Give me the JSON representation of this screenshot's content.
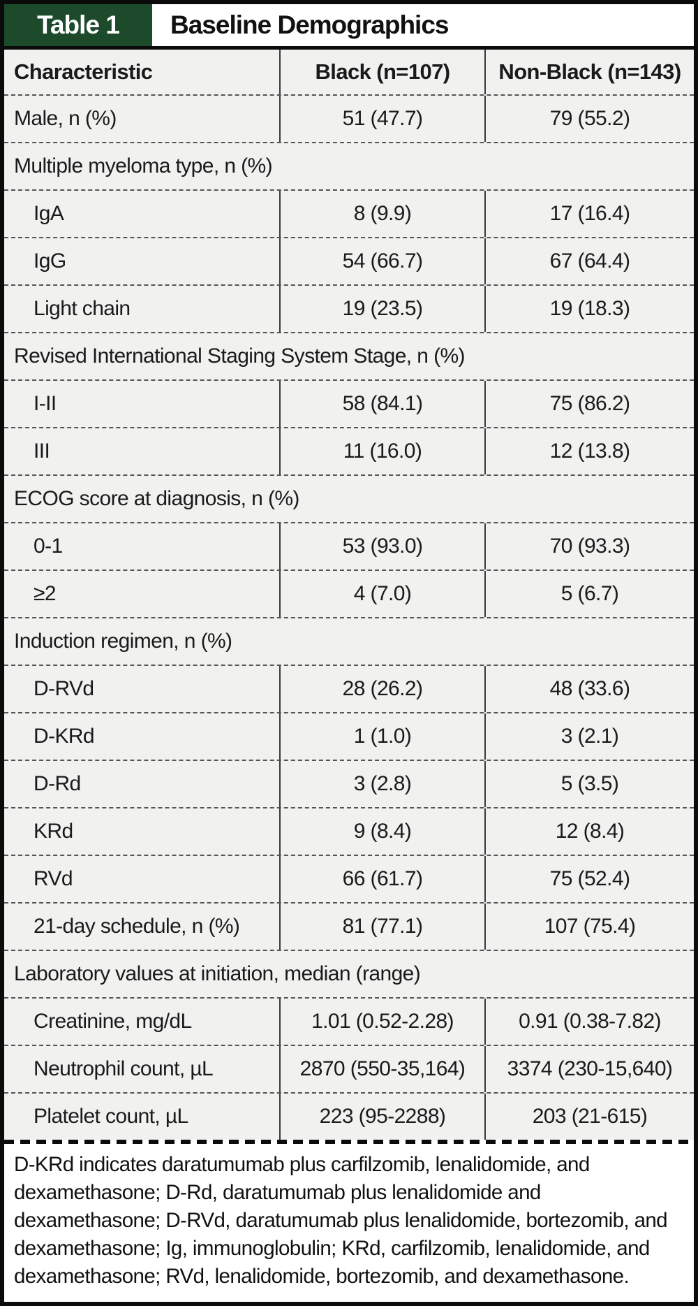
{
  "header": {
    "table_tag": "Table 1",
    "title": "Baseline Demographics"
  },
  "table": {
    "columns": [
      "Characteristic",
      "Black (n=107)",
      "Non-Black (n=143)"
    ],
    "rows": [
      {
        "type": "data",
        "indent": false,
        "label": "Male, n (%)",
        "values": [
          "51 (47.7)",
          "79 (55.2)"
        ]
      },
      {
        "type": "section",
        "label": "Multiple myeloma type, n (%)"
      },
      {
        "type": "data",
        "indent": true,
        "label": "IgA",
        "values": [
          "8 (9.9)",
          "17 (16.4)"
        ]
      },
      {
        "type": "data",
        "indent": true,
        "label": "IgG",
        "values": [
          "54 (66.7)",
          "67 (64.4)"
        ]
      },
      {
        "type": "data",
        "indent": true,
        "label": "Light chain",
        "values": [
          "19 (23.5)",
          "19 (18.3)"
        ]
      },
      {
        "type": "section",
        "label": "Revised International Staging System Stage, n (%)"
      },
      {
        "type": "data",
        "indent": true,
        "label": "I-II",
        "values": [
          "58 (84.1)",
          "75 (86.2)"
        ]
      },
      {
        "type": "data",
        "indent": true,
        "label": "III",
        "values": [
          "11 (16.0)",
          "12 (13.8)"
        ]
      },
      {
        "type": "section",
        "label": "ECOG score at diagnosis, n (%)"
      },
      {
        "type": "data",
        "indent": true,
        "label": "0-1",
        "values": [
          "53 (93.0)",
          "70 (93.3)"
        ]
      },
      {
        "type": "data",
        "indent": true,
        "label": "≥2",
        "values": [
          "4 (7.0)",
          "5 (6.7)"
        ]
      },
      {
        "type": "section",
        "label": "Induction regimen, n (%)"
      },
      {
        "type": "data",
        "indent": true,
        "label": "D-RVd",
        "values": [
          "28 (26.2)",
          "48 (33.6)"
        ]
      },
      {
        "type": "data",
        "indent": true,
        "label": "D-KRd",
        "values": [
          "1 (1.0)",
          "3 (2.1)"
        ]
      },
      {
        "type": "data",
        "indent": true,
        "label": "D-Rd",
        "values": [
          "3 (2.8)",
          "5 (3.5)"
        ]
      },
      {
        "type": "data",
        "indent": true,
        "label": "KRd",
        "values": [
          "9 (8.4)",
          "12 (8.4)"
        ]
      },
      {
        "type": "data",
        "indent": true,
        "label": "RVd",
        "values": [
          "66 (61.7)",
          "75 (52.4)"
        ]
      },
      {
        "type": "data",
        "indent": true,
        "label": "21-day schedule, n (%)",
        "values": [
          "81 (77.1)",
          "107 (75.4)"
        ]
      },
      {
        "type": "section",
        "label": "Laboratory values at initiation, median (range)"
      },
      {
        "type": "data",
        "indent": true,
        "label": "Creatinine, mg/dL",
        "values": [
          "1.01 (0.52-2.28)",
          "0.91 (0.38-7.82)"
        ]
      },
      {
        "type": "data",
        "indent": true,
        "label": "Neutrophil count, µL",
        "values": [
          "2870 (550-35,164)",
          "3374 (230-15,640)"
        ]
      },
      {
        "type": "data",
        "indent": true,
        "label": "Platelet count, µL",
        "values": [
          "223 (95-2288)",
          "203 (21-615)"
        ]
      }
    ]
  },
  "footnote": "D-KRd indicates daratumumab plus carfilzomib, lenalidomide, and dexamethasone; D-Rd, daratumumab plus lenalidomide and dexamethasone; D-RVd, daratumumab plus lenalidomide, bortezomib, and dexamethasone; Ig, immunoglobulin; KRd, carfilzomib, lenalidomide, and dexamethasone; RVd, lenalidomide, bortezomib, and dexamethasone.",
  "colors": {
    "tag_green": "#1c4a2b",
    "row_background": "#f1f1f0",
    "border_black": "#0b0b0b"
  }
}
